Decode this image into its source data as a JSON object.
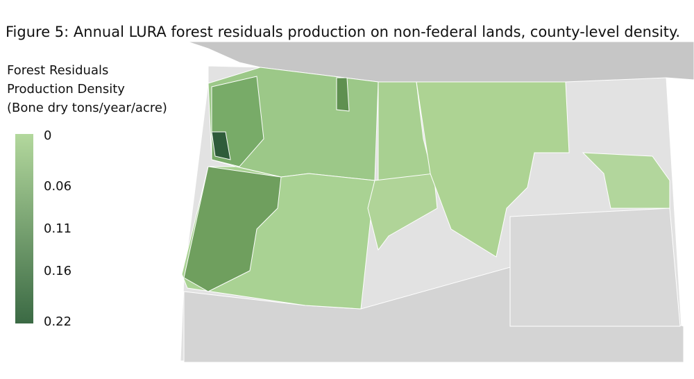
{
  "title": "Figure 5: Annual LURA forest residuals production on non-federal lands, county-level density.",
  "legend": {
    "title_lines": [
      "Forest Residuals",
      "Production Density",
      "(Bone dry tons/year/acre)"
    ],
    "ticks": [
      0,
      0.06,
      0.11,
      0.16,
      0.22
    ],
    "colors": [
      "#b3d89d",
      "#3b6a44"
    ]
  }
}
